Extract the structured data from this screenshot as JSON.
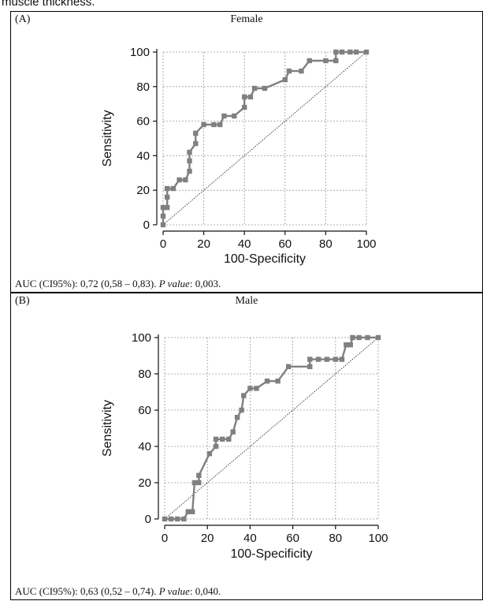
{
  "caption_fragment": "muscle thickness.",
  "panels": [
    {
      "letter": "(A)",
      "title": "Female",
      "footer": {
        "auc": "AUC (CI95%): 0,72 (0,58 – 0,83). ",
        "p_label": "P value",
        "p_rest": ": 0,003."
      }
    },
    {
      "letter": "(B)",
      "title": "Male",
      "footer": {
        "auc": "AUC (CI95%): 0,63 (0,52 – 0,74). ",
        "p_label": "P value",
        "p_rest": ": 0,040."
      }
    }
  ],
  "chart_data": [
    {
      "type": "line",
      "title": "Female",
      "xlabel": "100-Specificity",
      "ylabel": "Sensitivity",
      "xlim": [
        0,
        100
      ],
      "ylim": [
        0,
        100
      ],
      "xticks": [
        0,
        20,
        40,
        60,
        80,
        100
      ],
      "yticks": [
        0,
        20,
        40,
        60,
        80,
        100
      ],
      "grid": true,
      "series_color": "#808080",
      "reference_line": true,
      "points": [
        [
          0,
          0
        ],
        [
          0,
          5
        ],
        [
          0,
          10
        ],
        [
          2,
          10
        ],
        [
          2,
          16
        ],
        [
          2,
          21
        ],
        [
          5,
          21
        ],
        [
          8,
          26
        ],
        [
          11,
          26
        ],
        [
          13,
          31
        ],
        [
          13,
          37
        ],
        [
          13,
          42
        ],
        [
          16,
          47
        ],
        [
          16,
          53
        ],
        [
          20,
          58
        ],
        [
          25,
          58
        ],
        [
          28,
          58
        ],
        [
          30,
          63
        ],
        [
          35,
          63
        ],
        [
          40,
          68
        ],
        [
          40,
          74
        ],
        [
          43,
          74
        ],
        [
          45,
          79
        ],
        [
          50,
          79
        ],
        [
          60,
          84
        ],
        [
          62,
          89
        ],
        [
          68,
          89
        ],
        [
          72,
          95
        ],
        [
          80,
          95
        ],
        [
          85,
          95
        ],
        [
          85,
          100
        ],
        [
          88,
          100
        ],
        [
          92,
          100
        ],
        [
          95,
          100
        ],
        [
          100,
          100
        ]
      ]
    },
    {
      "type": "line",
      "title": "Male",
      "xlabel": "100-Specificity",
      "ylabel": "Sensitivity",
      "xlim": [
        0,
        100
      ],
      "ylim": [
        0,
        100
      ],
      "xticks": [
        0,
        20,
        40,
        60,
        80,
        100
      ],
      "yticks": [
        0,
        20,
        40,
        60,
        80,
        100
      ],
      "grid": true,
      "series_color": "#808080",
      "reference_line": true,
      "points": [
        [
          0,
          0
        ],
        [
          3,
          0
        ],
        [
          6,
          0
        ],
        [
          9,
          0
        ],
        [
          11,
          4
        ],
        [
          13,
          4
        ],
        [
          14,
          20
        ],
        [
          16,
          20
        ],
        [
          16,
          24
        ],
        [
          21,
          36
        ],
        [
          24,
          40
        ],
        [
          24,
          44
        ],
        [
          27,
          44
        ],
        [
          30,
          44
        ],
        [
          32,
          48
        ],
        [
          34,
          56
        ],
        [
          36,
          60
        ],
        [
          37,
          68
        ],
        [
          40,
          72
        ],
        [
          43,
          72
        ],
        [
          48,
          76
        ],
        [
          53,
          76
        ],
        [
          58,
          84
        ],
        [
          68,
          84
        ],
        [
          68,
          88
        ],
        [
          72,
          88
        ],
        [
          76,
          88
        ],
        [
          80,
          88
        ],
        [
          83,
          88
        ],
        [
          85,
          96
        ],
        [
          87,
          96
        ],
        [
          88,
          100
        ],
        [
          91,
          100
        ],
        [
          95,
          100
        ],
        [
          100,
          100
        ]
      ]
    }
  ]
}
